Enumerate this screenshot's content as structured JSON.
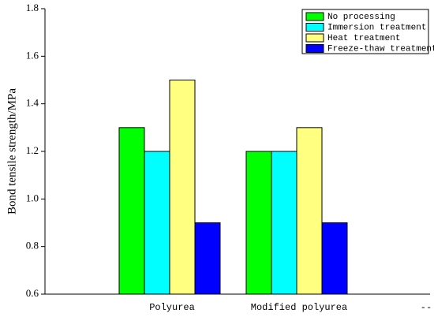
{
  "chart_data": {
    "type": "bar",
    "ylabel": "Bond tensile strength/MPa",
    "categories": [
      "Polyurea",
      "Modified polyurea",
      "--"
    ],
    "series": [
      {
        "name": "No processing",
        "color": "#00ff00",
        "values": [
          1.3,
          1.2,
          null
        ]
      },
      {
        "name": "Immersion treatment",
        "color": "#00ffff",
        "values": [
          1.2,
          1.2,
          null
        ]
      },
      {
        "name": "Heat treatment",
        "color": "#ffff80",
        "values": [
          1.5,
          1.3,
          null
        ]
      },
      {
        "name": "Freeze-thaw treatment",
        "color": "#0000ff",
        "values": [
          0.9,
          0.9,
          null
        ]
      }
    ],
    "ylim": [
      0.6,
      1.8
    ],
    "yticks": [
      0.6,
      0.8,
      {
        "value": 1,
        "label": "1.0"
      },
      1.2,
      1.4,
      1.6,
      1.8
    ],
    "legend": "upper right"
  }
}
